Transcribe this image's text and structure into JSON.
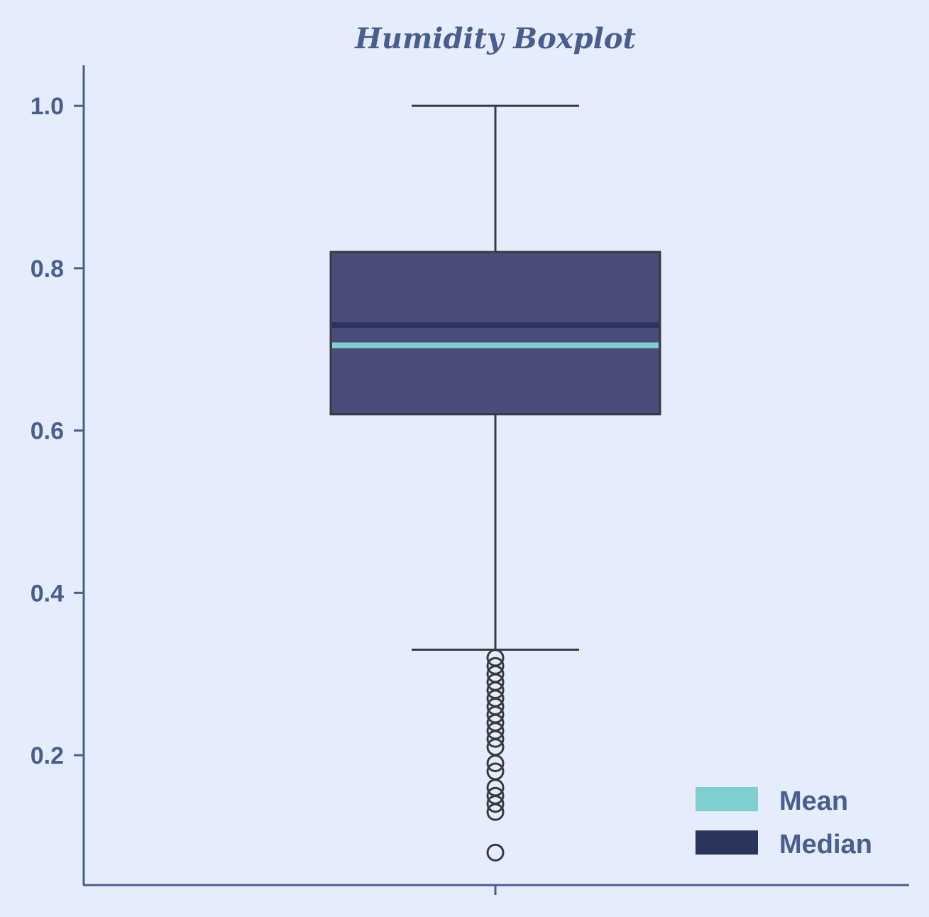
{
  "chart_data": {
    "type": "boxplot",
    "title": "Humidity Boxplot",
    "xlabel": "",
    "ylabel": "",
    "ylim": [
      0.04,
      1.05
    ],
    "yticks": [
      0.2,
      0.4,
      0.6,
      0.8,
      1.0
    ],
    "ytick_labels": [
      "0.2",
      "0.4",
      "0.6",
      "0.8",
      "1.0"
    ],
    "categories": [
      ""
    ],
    "box": {
      "whisker_low": 0.33,
      "q1": 0.62,
      "median": 0.73,
      "mean": 0.705,
      "q3": 0.82,
      "whisker_high": 1.0
    },
    "outliers": [
      0.32,
      0.31,
      0.3,
      0.29,
      0.28,
      0.27,
      0.26,
      0.25,
      0.24,
      0.23,
      0.22,
      0.21,
      0.19,
      0.18,
      0.16,
      0.15,
      0.14,
      0.13,
      0.08
    ],
    "legend": {
      "position": "bottom-right",
      "items": [
        {
          "label": "Mean",
          "color": "#7ecfcd"
        },
        {
          "label": "Median",
          "color": "#2b345c"
        }
      ]
    },
    "colors": {
      "background": "#e5edfd",
      "axis": "#4a5d8f",
      "text": "#4a5d8f",
      "box_fill": "#4a4c7c",
      "box_edge": "#3a3a3e",
      "mean_line": "#7ecfcd",
      "median_line": "#2b345c"
    },
    "grid": false
  }
}
